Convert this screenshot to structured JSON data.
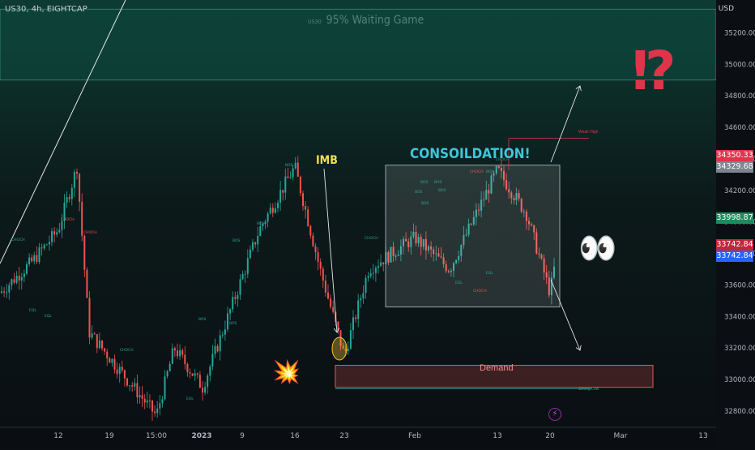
{
  "header": {
    "symbol_line": "US30, 4h, EIGHTCAP",
    "currency": "USD"
  },
  "watermark": {
    "ticker": "US30",
    "title": "95% Waiting Game"
  },
  "annotations": {
    "imb": "IMB",
    "consolidation": "CONSOILDATION!",
    "demand": "Demand",
    "weak_high": "Weak High",
    "strong_low": "Strong Low",
    "interrobang": "⁉",
    "eyes": "👀",
    "explosion": "💥",
    "structure_labels": [
      "CHOCH",
      "CHOCH",
      "EQL",
      "EQL",
      "CHOCH",
      "BOS",
      "BOS",
      "BOS",
      "BOS",
      "CHOCH",
      "BOS",
      "EQL",
      "CHOCH",
      "BOS",
      "BOS",
      "EQL",
      "CHOCH",
      "BOS",
      "BOS",
      "CHOCH",
      "BOS",
      "BOS",
      "EQL",
      "CHOCH"
    ]
  },
  "colors": {
    "background": "#0b0f14",
    "up": "#26a69a",
    "down": "#ef5350",
    "supply_zone": "#0f4a40",
    "demand_zone": "#ef5350",
    "consolidation_box": "#9aa3ad",
    "imb_label": "#f4e04d",
    "consolidation_label": "#3fc6d8",
    "interrobang": "#e0344a"
  },
  "chart_data": {
    "type": "candlestick",
    "title": "US30, 4h, EIGHTCAP",
    "ylabel": "USD",
    "ylim": [
      32600,
      35400
    ],
    "y_ticks": [
      "35200.00",
      "35000.00",
      "34800.00",
      "34600.00",
      "34400.00",
      "34200.00",
      "34000.00",
      "33800.00",
      "33600.00",
      "33400.00",
      "33200.00",
      "33000.00",
      "32800.00"
    ],
    "x_ticks": [
      "12",
      "19",
      "15:00",
      "2023",
      "9",
      "16",
      "23",
      "Feb",
      "13",
      "20",
      "Mar",
      "13"
    ],
    "price_labels": [
      {
        "value": "34350.33",
        "color": "#e0344a"
      },
      {
        "value": "34329.68",
        "color": "#7d8590"
      },
      {
        "value": "33998.87",
        "color": "#1e8a5e"
      },
      {
        "value": "33742.84",
        "color": "#c2263b"
      },
      {
        "value": "33742.84",
        "color": "#2962ff"
      }
    ],
    "zones": [
      {
        "name": "Supply",
        "from": 34900,
        "to": 35350
      },
      {
        "name": "Demand",
        "from": 32950,
        "to": 33090
      }
    ],
    "consolidation_range": [
      33460,
      34360
    ],
    "weak_high": 34530,
    "strong_low": 32940,
    "guide_points": [
      {
        "x": "12",
        "y": 33950
      },
      {
        "x": "15:00",
        "y": 32770
      },
      {
        "x": "16",
        "y": 34350
      },
      {
        "x": "23",
        "y": 33150
      },
      {
        "x": "Feb",
        "y": 33900
      },
      {
        "x": "13",
        "y": 34330
      },
      {
        "x": "20",
        "y": 33550
      }
    ]
  }
}
